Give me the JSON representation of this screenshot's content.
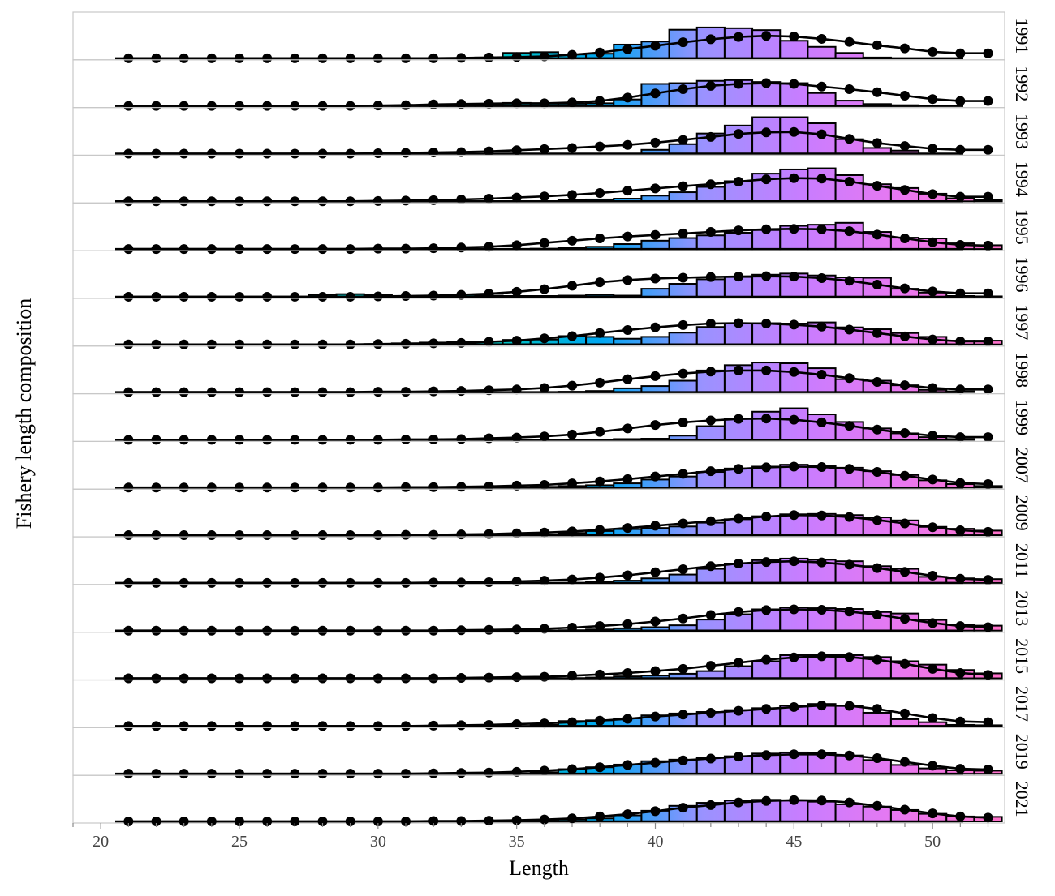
{
  "chart_data": {
    "type": "bar",
    "subtype": "faceted-histogram-with-fitted-line",
    "xlabel": "Length",
    "ylabel": "Fishery length composition",
    "xlim": [
      19,
      52.6
    ],
    "x_ticks": [
      20,
      25,
      30,
      35,
      40,
      45,
      50
    ],
    "bins": [
      21,
      22,
      23,
      24,
      25,
      26,
      27,
      28,
      29,
      30,
      31,
      32,
      33,
      34,
      35,
      36,
      37,
      38,
      39,
      40,
      41,
      42,
      43,
      44,
      45,
      46,
      47,
      48,
      49,
      50,
      51,
      52
    ],
    "bar_gradient": [
      "#00c0c0",
      "#00a6f2",
      "#9a92ff",
      "#c87dff",
      "#e978f0",
      "#ff70c9"
    ],
    "line_color": "#000000",
    "panels": [
      {
        "year": "1991",
        "observed": [
          0,
          0,
          0,
          0,
          0,
          0,
          0,
          0,
          0,
          0,
          0,
          0,
          0,
          0.02,
          0.14,
          0.16,
          0.1,
          0.12,
          0.36,
          0.44,
          0.75,
          0.81,
          0.79,
          0.74,
          0.46,
          0.3,
          0.14,
          0.02,
          0,
          0,
          0,
          0
        ],
        "expected": [
          0,
          0,
          0,
          0,
          0,
          0,
          0,
          0,
          0,
          0,
          0,
          0,
          0.01,
          0.02,
          0.03,
          0.05,
          0.09,
          0.15,
          0.24,
          0.33,
          0.42,
          0.5,
          0.56,
          0.59,
          0.57,
          0.51,
          0.43,
          0.34,
          0.26,
          0.17,
          0.13,
          0.13
        ]
      },
      {
        "year": "1992",
        "observed": [
          0,
          0,
          0,
          0,
          0,
          0,
          0,
          0,
          0,
          0,
          0.01,
          0.02,
          0.03,
          0.05,
          0.08,
          0.06,
          0.06,
          0.07,
          0.17,
          0.58,
          0.6,
          0.66,
          0.68,
          0.63,
          0.6,
          0.34,
          0.14,
          0.05,
          0.02,
          0,
          0,
          0
        ],
        "expected": [
          0,
          0,
          0,
          0,
          0,
          0,
          0,
          0,
          0,
          0.01,
          0.02,
          0.04,
          0.05,
          0.06,
          0.07,
          0.07,
          0.09,
          0.13,
          0.22,
          0.33,
          0.44,
          0.53,
          0.58,
          0.6,
          0.58,
          0.51,
          0.44,
          0.36,
          0.27,
          0.18,
          0.13,
          0.13
        ]
      },
      {
        "year": "1993",
        "observed": [
          0,
          0,
          0,
          0,
          0,
          0,
          0,
          0,
          0,
          0,
          0,
          0,
          0,
          0,
          0,
          0,
          0,
          0,
          0,
          0.1,
          0.25,
          0.53,
          0.74,
          0.96,
          0.96,
          0.8,
          0.38,
          0.15,
          0.08,
          0,
          0,
          0
        ],
        "expected": [
          0,
          0,
          0,
          0,
          0,
          0,
          0,
          0,
          0,
          0.01,
          0.02,
          0.03,
          0.04,
          0.06,
          0.09,
          0.12,
          0.15,
          0.19,
          0.23,
          0.29,
          0.36,
          0.44,
          0.52,
          0.56,
          0.57,
          0.51,
          0.39,
          0.28,
          0.2,
          0.13,
          0.1,
          0.1
        ]
      },
      {
        "year": "1994",
        "observed": [
          0,
          0,
          0,
          0,
          0,
          0,
          0,
          0,
          0,
          0,
          0,
          0,
          0,
          0,
          0,
          0,
          0.03,
          0.05,
          0.07,
          0.15,
          0.24,
          0.38,
          0.53,
          0.73,
          0.84,
          0.87,
          0.69,
          0.45,
          0.35,
          0.2,
          0.08,
          0.03
        ],
        "expected": [
          0,
          0,
          0,
          0,
          0,
          0,
          0,
          0,
          0,
          0.01,
          0.02,
          0.03,
          0.05,
          0.07,
          0.1,
          0.13,
          0.17,
          0.22,
          0.28,
          0.34,
          0.4,
          0.45,
          0.52,
          0.58,
          0.61,
          0.6,
          0.52,
          0.41,
          0.3,
          0.19,
          0.12,
          0.12
        ]
      },
      {
        "year": "1995",
        "observed": [
          0,
          0,
          0,
          0,
          0,
          0,
          0,
          0,
          0,
          0,
          0,
          0,
          0,
          0,
          0,
          0.01,
          0.03,
          0.06,
          0.13,
          0.22,
          0.29,
          0.36,
          0.43,
          0.5,
          0.61,
          0.64,
          0.69,
          0.45,
          0.3,
          0.28,
          0.15,
          0.1
        ],
        "expected": [
          0,
          0,
          0,
          0,
          0,
          0,
          0,
          0,
          0,
          0.01,
          0.01,
          0.02,
          0.04,
          0.06,
          0.1,
          0.16,
          0.22,
          0.28,
          0.33,
          0.37,
          0.41,
          0.45,
          0.49,
          0.52,
          0.53,
          0.52,
          0.47,
          0.38,
          0.28,
          0.18,
          0.11,
          0.09
        ]
      },
      {
        "year": "1996",
        "observed": [
          0,
          0,
          0,
          0,
          0,
          0,
          0,
          0.05,
          0.07,
          0.05,
          0.02,
          0.01,
          0.05,
          0.03,
          0.02,
          0.02,
          0.03,
          0.05,
          0.03,
          0.21,
          0.34,
          0.46,
          0.52,
          0.58,
          0.61,
          0.56,
          0.51,
          0.5,
          0.21,
          0.11,
          0.02,
          0.01
        ],
        "expected": [
          0,
          0,
          0,
          0,
          0,
          0,
          0,
          0,
          0,
          0.01,
          0.02,
          0.03,
          0.05,
          0.08,
          0.13,
          0.2,
          0.29,
          0.38,
          0.44,
          0.48,
          0.5,
          0.52,
          0.53,
          0.54,
          0.53,
          0.49,
          0.42,
          0.32,
          0.22,
          0.14,
          0.09,
          0.09
        ]
      },
      {
        "year": "1997",
        "observed": [
          0,
          0,
          0,
          0,
          0,
          0,
          0,
          0,
          0,
          0.01,
          0.03,
          0.05,
          0.06,
          0.08,
          0.12,
          0.13,
          0.22,
          0.2,
          0.15,
          0.2,
          0.31,
          0.46,
          0.55,
          0.56,
          0.55,
          0.58,
          0.45,
          0.4,
          0.3,
          0.2,
          0.1,
          0.1
        ],
        "expected": [
          0,
          0,
          0,
          0,
          0,
          0,
          0,
          0,
          0,
          0.01,
          0.02,
          0.03,
          0.04,
          0.07,
          0.1,
          0.16,
          0.22,
          0.3,
          0.38,
          0.45,
          0.51,
          0.55,
          0.56,
          0.55,
          0.52,
          0.47,
          0.39,
          0.3,
          0.21,
          0.13,
          0.08,
          0.08
        ]
      },
      {
        "year": "1998",
        "observed": [
          0,
          0,
          0,
          0,
          0,
          0,
          0,
          0,
          0,
          0,
          0,
          0,
          0,
          0,
          0,
          0,
          0.01,
          0.03,
          0.1,
          0.16,
          0.3,
          0.57,
          0.71,
          0.78,
          0.76,
          0.63,
          0.34,
          0.3,
          0.18,
          0.06,
          0.02,
          0
        ],
        "expected": [
          0,
          0,
          0,
          0,
          0,
          0,
          0,
          0,
          0,
          0.01,
          0.01,
          0.02,
          0.03,
          0.05,
          0.07,
          0.11,
          0.17,
          0.25,
          0.34,
          0.42,
          0.49,
          0.54,
          0.57,
          0.57,
          0.53,
          0.46,
          0.37,
          0.27,
          0.18,
          0.11,
          0.07,
          0.07
        ]
      },
      {
        "year": "1999",
        "observed": [
          0,
          0,
          0,
          0,
          0,
          0,
          0,
          0,
          0,
          0,
          0,
          0,
          0,
          0,
          0,
          0,
          0,
          0,
          0.02,
          0.03,
          0.11,
          0.36,
          0.56,
          0.74,
          0.83,
          0.67,
          0.47,
          0.3,
          0.17,
          0.07,
          0.02,
          0
        ],
        "expected": [
          0,
          0,
          0,
          0,
          0,
          0,
          0,
          0,
          0,
          0,
          0.01,
          0.01,
          0.02,
          0.04,
          0.06,
          0.09,
          0.14,
          0.21,
          0.3,
          0.39,
          0.46,
          0.51,
          0.55,
          0.56,
          0.53,
          0.46,
          0.37,
          0.27,
          0.18,
          0.11,
          0.07,
          0.07
        ]
      },
      {
        "year": "2007",
        "observed": [
          0,
          0,
          0,
          0,
          0,
          0,
          0,
          0,
          0,
          0,
          0,
          0,
          0,
          0,
          0.01,
          0.02,
          0.04,
          0.06,
          0.11,
          0.21,
          0.29,
          0.41,
          0.5,
          0.55,
          0.6,
          0.56,
          0.52,
          0.43,
          0.33,
          0.19,
          0.09,
          0.04
        ],
        "expected": [
          0,
          0,
          0,
          0,
          0,
          0,
          0,
          0,
          0,
          0,
          0.01,
          0.01,
          0.02,
          0.03,
          0.05,
          0.07,
          0.11,
          0.16,
          0.22,
          0.29,
          0.36,
          0.43,
          0.49,
          0.53,
          0.55,
          0.54,
          0.49,
          0.41,
          0.31,
          0.21,
          0.12,
          0.09
        ]
      },
      {
        "year": "2009",
        "observed": [
          0,
          0,
          0,
          0,
          0,
          0,
          0,
          0,
          0,
          0,
          0,
          0,
          0,
          0,
          0,
          0.02,
          0.06,
          0.11,
          0.16,
          0.19,
          0.23,
          0.33,
          0.42,
          0.5,
          0.55,
          0.56,
          0.53,
          0.47,
          0.39,
          0.22,
          0.17,
          0.12
        ],
        "expected": [
          0,
          0,
          0,
          0,
          0,
          0,
          0,
          0,
          0,
          0,
          0.01,
          0.01,
          0.02,
          0.03,
          0.05,
          0.07,
          0.1,
          0.14,
          0.19,
          0.25,
          0.31,
          0.37,
          0.44,
          0.49,
          0.53,
          0.52,
          0.48,
          0.4,
          0.31,
          0.21,
          0.13,
          0.09
        ]
      },
      {
        "year": "2011",
        "observed": [
          0,
          0,
          0,
          0,
          0,
          0,
          0,
          0,
          0,
          0,
          0,
          0,
          0,
          0,
          0,
          0,
          0,
          0.03,
          0.06,
          0.12,
          0.22,
          0.37,
          0.51,
          0.6,
          0.64,
          0.61,
          0.57,
          0.44,
          0.37,
          0.16,
          0.12,
          0.1
        ],
        "expected": [
          0,
          0,
          0,
          0,
          0,
          0,
          0,
          0,
          0,
          0,
          0,
          0.01,
          0.01,
          0.02,
          0.04,
          0.06,
          0.09,
          0.14,
          0.2,
          0.28,
          0.36,
          0.44,
          0.51,
          0.55,
          0.57,
          0.54,
          0.48,
          0.39,
          0.29,
          0.19,
          0.11,
          0.08
        ]
      },
      {
        "year": "2013",
        "observed": [
          0,
          0,
          0,
          0,
          0,
          0,
          0,
          0,
          0,
          0,
          0,
          0,
          0,
          0,
          0,
          0,
          0.01,
          0.03,
          0.06,
          0.09,
          0.14,
          0.29,
          0.43,
          0.56,
          0.61,
          0.59,
          0.57,
          0.49,
          0.45,
          0.28,
          0.15,
          0.13
        ],
        "expected": [
          0,
          0,
          0,
          0,
          0,
          0,
          0,
          0,
          0,
          0,
          0,
          0,
          0.01,
          0.02,
          0.03,
          0.05,
          0.08,
          0.12,
          0.17,
          0.24,
          0.32,
          0.41,
          0.49,
          0.54,
          0.56,
          0.55,
          0.5,
          0.42,
          0.31,
          0.2,
          0.12,
          0.09
        ]
      },
      {
        "year": "2015",
        "observed": [
          0,
          0,
          0,
          0,
          0,
          0,
          0,
          0,
          0,
          0,
          0,
          0,
          0,
          0,
          0,
          0,
          0,
          0.02,
          0.05,
          0.07,
          0.12,
          0.19,
          0.32,
          0.45,
          0.61,
          0.61,
          0.61,
          0.56,
          0.45,
          0.36,
          0.22,
          0.13
        ],
        "expected": [
          0,
          0,
          0,
          0,
          0,
          0,
          0,
          0,
          0,
          0,
          0,
          0,
          0.01,
          0.02,
          0.03,
          0.04,
          0.07,
          0.1,
          0.14,
          0.19,
          0.25,
          0.33,
          0.41,
          0.49,
          0.55,
          0.58,
          0.56,
          0.49,
          0.38,
          0.25,
          0.14,
          0.09
        ]
      },
      {
        "year": "2017",
        "observed": [
          0,
          0,
          0,
          0,
          0,
          0,
          0,
          0,
          0,
          0,
          0,
          0,
          0,
          0,
          0,
          0.03,
          0.13,
          0.15,
          0.2,
          0.28,
          0.33,
          0.37,
          0.42,
          0.47,
          0.54,
          0.58,
          0.54,
          0.35,
          0.18,
          0.1,
          0.03,
          0.02
        ],
        "expected": [
          0,
          0,
          0,
          0,
          0,
          0,
          0,
          0,
          0,
          0,
          0,
          0.01,
          0.02,
          0.03,
          0.05,
          0.07,
          0.1,
          0.14,
          0.19,
          0.25,
          0.3,
          0.35,
          0.4,
          0.45,
          0.5,
          0.54,
          0.53,
          0.45,
          0.33,
          0.21,
          0.12,
          0.1
        ]
      },
      {
        "year": "2019",
        "observed": [
          0,
          0,
          0,
          0,
          0,
          0,
          0,
          0,
          0,
          0,
          0,
          0,
          0,
          0,
          0,
          0.04,
          0.12,
          0.17,
          0.24,
          0.33,
          0.37,
          0.42,
          0.46,
          0.53,
          0.56,
          0.54,
          0.48,
          0.36,
          0.23,
          0.14,
          0.09,
          0.08
        ],
        "expected": [
          0,
          0,
          0,
          0,
          0,
          0,
          0,
          0,
          0,
          0,
          0,
          0.01,
          0.02,
          0.03,
          0.05,
          0.08,
          0.12,
          0.17,
          0.23,
          0.29,
          0.35,
          0.4,
          0.45,
          0.49,
          0.51,
          0.51,
          0.48,
          0.41,
          0.31,
          0.21,
          0.13,
          0.11
        ]
      },
      {
        "year": "2021",
        "observed": [
          0,
          0,
          0,
          0,
          0,
          0,
          0,
          0,
          0,
          0,
          0,
          0,
          0,
          0,
          0,
          0.02,
          0.05,
          0.08,
          0.16,
          0.28,
          0.41,
          0.49,
          0.55,
          0.57,
          0.55,
          0.52,
          0.45,
          0.39,
          0.3,
          0.2,
          0.13,
          0.12
        ],
        "expected": [
          0,
          0,
          0,
          0,
          0,
          0,
          0,
          0,
          0,
          0,
          0,
          0.01,
          0.01,
          0.02,
          0.03,
          0.05,
          0.08,
          0.13,
          0.19,
          0.27,
          0.36,
          0.43,
          0.5,
          0.54,
          0.56,
          0.55,
          0.5,
          0.41,
          0.31,
          0.21,
          0.13,
          0.1
        ]
      }
    ]
  }
}
